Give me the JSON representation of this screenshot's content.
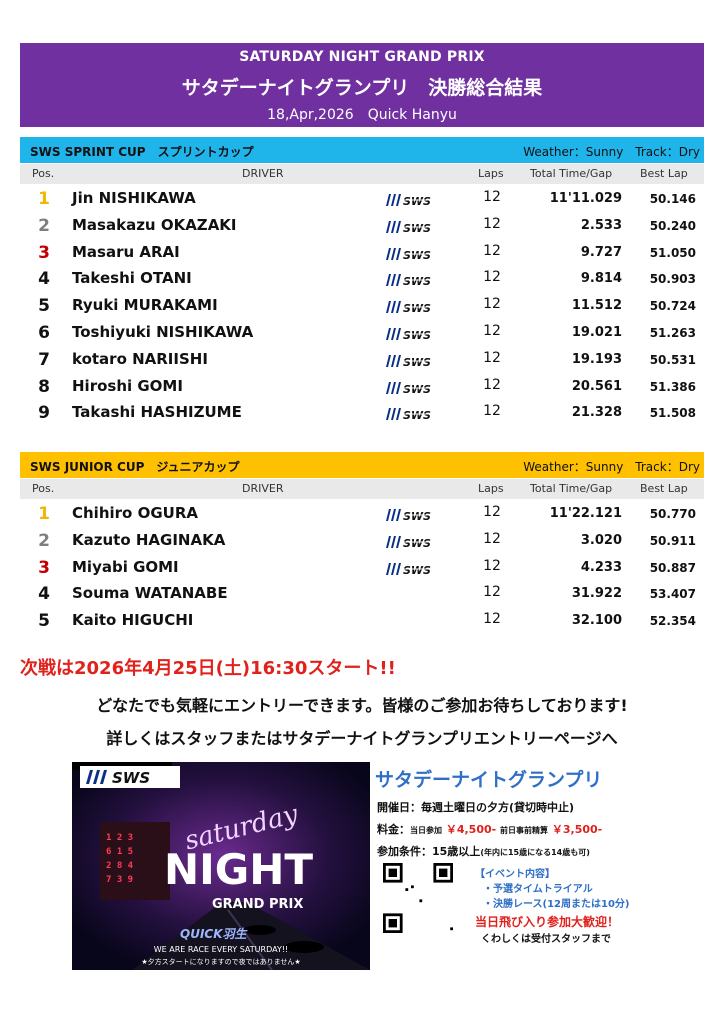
{
  "header": {
    "title_en": "SATURDAY NIGHT GRAND PRIX",
    "title_jp": "サタデーナイトグランプリ　決勝総合結果",
    "date_venue": "18,Apr,2026　Quick Hanyu"
  },
  "columns": {
    "pos": "Pos.",
    "driver": "DRIVER",
    "laps": "Laps",
    "total": "Total Time/Gap",
    "best": "Best Lap"
  },
  "sprint": {
    "name": "SWS SPRINT CUP　スプリントカップ",
    "weather": "Weather：Sunny　Track：Dry",
    "bar_color": "#1fb4ea",
    "rows": [
      {
        "pos": "1",
        "driver": "Jin NISHIKAWA",
        "logo": true,
        "laps": "12",
        "total": "11'11.029",
        "best": "50.146"
      },
      {
        "pos": "2",
        "driver": "Masakazu OKAZAKI",
        "logo": true,
        "laps": "12",
        "total": "2.533",
        "best": "50.240"
      },
      {
        "pos": "3",
        "driver": "Masaru ARAI",
        "logo": true,
        "laps": "12",
        "total": "9.727",
        "best": "51.050"
      },
      {
        "pos": "4",
        "driver": "Takeshi OTANI",
        "logo": true,
        "laps": "12",
        "total": "9.814",
        "best": "50.903"
      },
      {
        "pos": "5",
        "driver": "Ryuki MURAKAMI",
        "logo": true,
        "laps": "12",
        "total": "11.512",
        "best": "50.724"
      },
      {
        "pos": "6",
        "driver": "Toshiyuki NISHIKAWA",
        "logo": true,
        "laps": "12",
        "total": "19.021",
        "best": "51.263"
      },
      {
        "pos": "7",
        "driver": "kotaro NARIISHI",
        "logo": true,
        "laps": "12",
        "total": "19.193",
        "best": "50.531"
      },
      {
        "pos": "8",
        "driver": "Hiroshi GOMI",
        "logo": true,
        "laps": "12",
        "total": "20.561",
        "best": "51.386"
      },
      {
        "pos": "9",
        "driver": "Takashi HASHIZUME",
        "logo": true,
        "laps": "12",
        "total": "21.328",
        "best": "51.508"
      }
    ]
  },
  "junior": {
    "name": "SWS JUNIOR CUP　ジュニアカップ",
    "weather": "Weather：Sunny　Track：Dry",
    "bar_color": "#ffc000",
    "rows": [
      {
        "pos": "1",
        "driver": "Chihiro OGURA",
        "logo": true,
        "laps": "12",
        "total": "11'22.121",
        "best": "50.770"
      },
      {
        "pos": "2",
        "driver": "Kazuto HAGINAKA",
        "logo": true,
        "laps": "12",
        "total": "3.020",
        "best": "50.911"
      },
      {
        "pos": "3",
        "driver": "Miyabi GOMI",
        "logo": true,
        "laps": "12",
        "total": "4.233",
        "best": "50.887"
      },
      {
        "pos": "4",
        "driver": "Souma WATANABE",
        "logo": false,
        "laps": "12",
        "total": "31.922",
        "best": "53.407"
      },
      {
        "pos": "5",
        "driver": "Kaito HIGUCHI",
        "logo": false,
        "laps": "12",
        "total": "32.100",
        "best": "52.354"
      }
    ]
  },
  "pos_colors": {
    "1": "#f2b705",
    "2": "#7f7f7f",
    "3": "#c00000"
  },
  "next_race": "次戦は2026年4月25日(土)16:30スタート!!",
  "message1": "どなたでも気軽にエントリーできます。皆様のご参加お待ちしております!",
  "message2": "詳しくはスタッフまたはサタデーナイトグランプリエントリーページへ",
  "poster": {
    "brand": "SWS",
    "word1": "saturday",
    "word2": "NIGHT",
    "word3": "GRAND PRIX",
    "venue": "QUICK羽生",
    "tagline": "WE ARE RACE EVERY SATURDAY!!",
    "note": "★夕方スタートになりますので夜ではありません★"
  },
  "info": {
    "title": "サタデーナイトグランプリ",
    "date_line": "開催日：毎週土曜日の夕方(貸切時中止)",
    "fee_label": "料金：",
    "fee_same_day_label": "当日参加",
    "fee_same_day": "￥4,500-",
    "fee_pre_label": "前日事前精算",
    "fee_pre": "￥3,500-",
    "cond_label": "参加条件：15歳以上",
    "cond_note": "(年内に15歳になる14歳も可)",
    "event_title": "【イベント内容】",
    "event1": "・予選タイムトライアル",
    "event2": "・決勝レース(12周または10分)",
    "welcome": "当日飛び入り参加大歓迎！",
    "details": "くわしくは受付スタッフまで"
  }
}
